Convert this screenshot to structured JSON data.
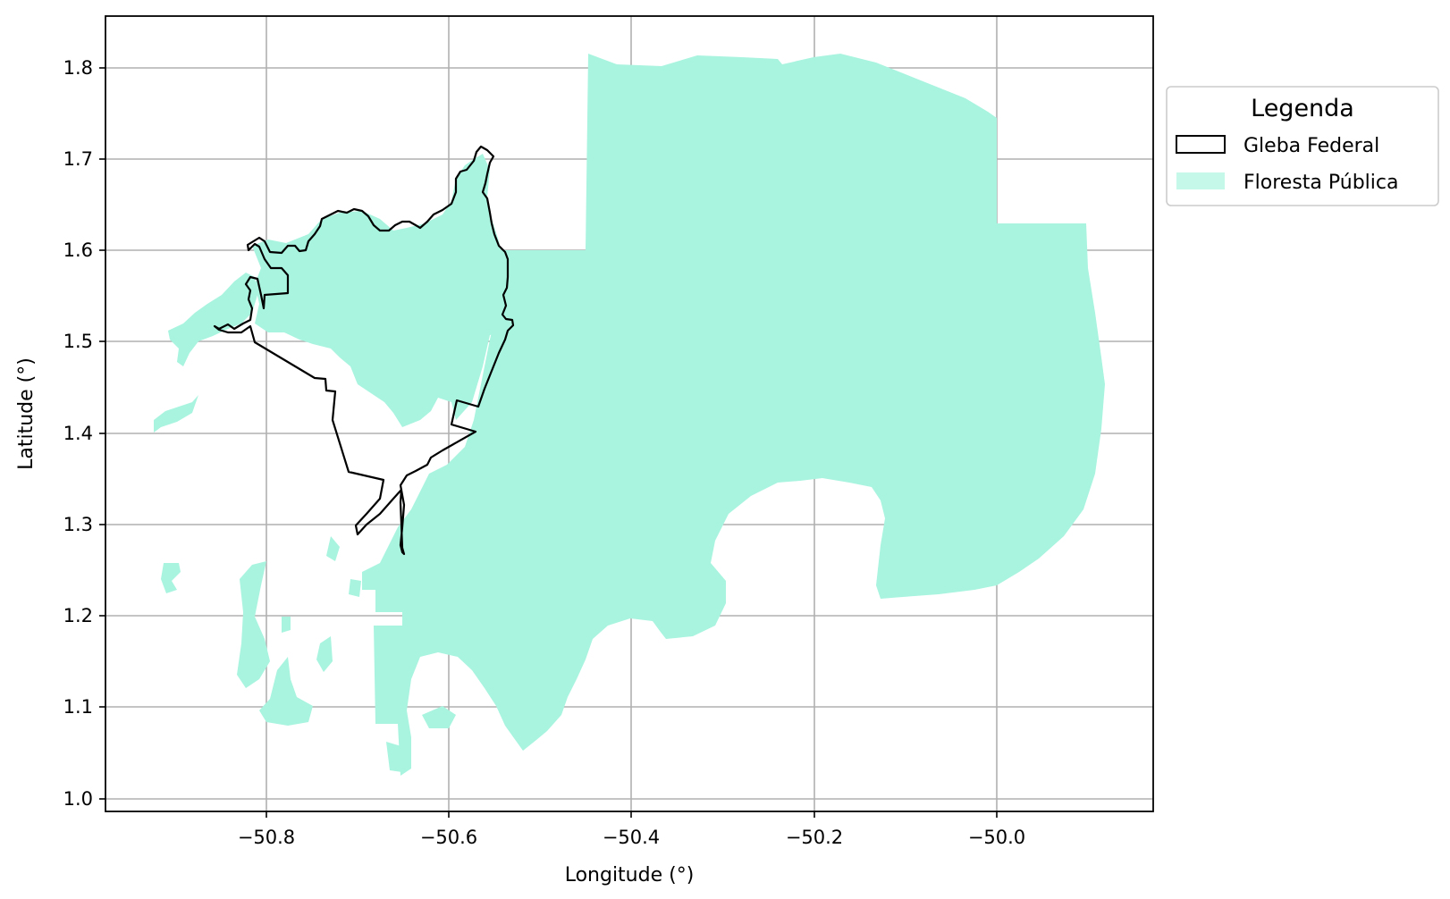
{
  "map": {
    "xlabel": "Longitude (°)",
    "ylabel": "Latitude (°)",
    "xlim": [
      -50.98,
      -49.83
    ],
    "ylim": [
      0.985,
      1.857
    ],
    "grid": true,
    "xticks": [
      -50.8,
      -50.6,
      -50.4,
      -50.2,
      -50.0
    ],
    "yticks": [
      1.0,
      1.1,
      1.2,
      1.3,
      1.4,
      1.5,
      1.6,
      1.7,
      1.8
    ],
    "colors": {
      "floresta": "#a8f4df",
      "gleba_edge": "#000000",
      "grid": "#b0b0b0"
    }
  },
  "legend": {
    "title": "Legenda",
    "placement": "outside-upper-right",
    "items": [
      {
        "label": "Gleba Federal",
        "style": "outline"
      },
      {
        "label": "Floresta Pública",
        "style": "fill"
      }
    ]
  }
}
